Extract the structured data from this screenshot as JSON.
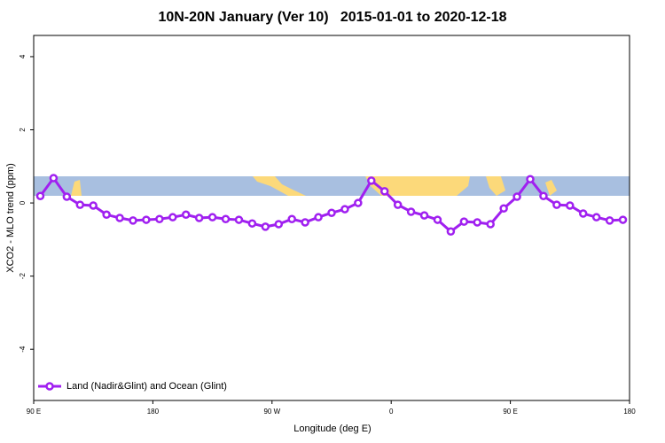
{
  "chart_data": {
    "type": "line",
    "title": "10N-20N January (Ver 10)   2015-01-01 to 2020-12-18",
    "x_label": "Longitude (deg E)",
    "y_label": "XCO2 - MLO trend (ppm)",
    "xlim": [
      90,
      540
    ],
    "ylim": [
      -5.4,
      4.58
    ],
    "xticks": [
      {
        "value": 90,
        "label": "90 E"
      },
      180,
      {
        "value": 270,
        "label": "90 W"
      },
      {
        "value": 360,
        "label": "0"
      },
      {
        "value": 450,
        "label": "90 E"
      },
      {
        "value": 540,
        "label": "180"
      }
    ],
    "yticks": [
      -4,
      -2,
      0,
      2,
      4
    ],
    "legend": "bottom-left",
    "x": [
      95,
      105,
      115,
      125,
      135,
      145,
      155,
      165,
      175,
      185,
      195,
      205,
      215,
      225,
      235,
      245,
      255,
      265,
      275,
      285,
      295,
      305,
      315,
      325,
      335,
      345,
      355,
      365,
      375,
      385,
      395,
      405,
      415,
      425,
      435,
      445,
      455,
      465,
      475,
      485,
      495,
      505,
      515,
      525,
      535
    ],
    "series": [
      {
        "name": "Land (Nadir&Glint) and Ocean (Glint)",
        "color": "#a020f0",
        "values": [
          0.19,
          0.68,
          0.17,
          -0.05,
          -0.07,
          -0.32,
          -0.41,
          -0.48,
          -0.46,
          -0.44,
          -0.39,
          -0.32,
          -0.41,
          -0.39,
          -0.44,
          -0.46,
          -0.56,
          -0.65,
          -0.58,
          -0.44,
          -0.53,
          -0.39,
          -0.27,
          -0.17,
          0.0,
          0.61,
          0.32,
          -0.05,
          -0.24,
          -0.34,
          -0.46,
          -0.78,
          -0.51,
          -0.53,
          -0.58,
          -0.15,
          0.17,
          0.65,
          0.19,
          -0.05,
          -0.07,
          -0.29,
          -0.39,
          -0.48,
          -0.46
        ]
      }
    ]
  }
}
